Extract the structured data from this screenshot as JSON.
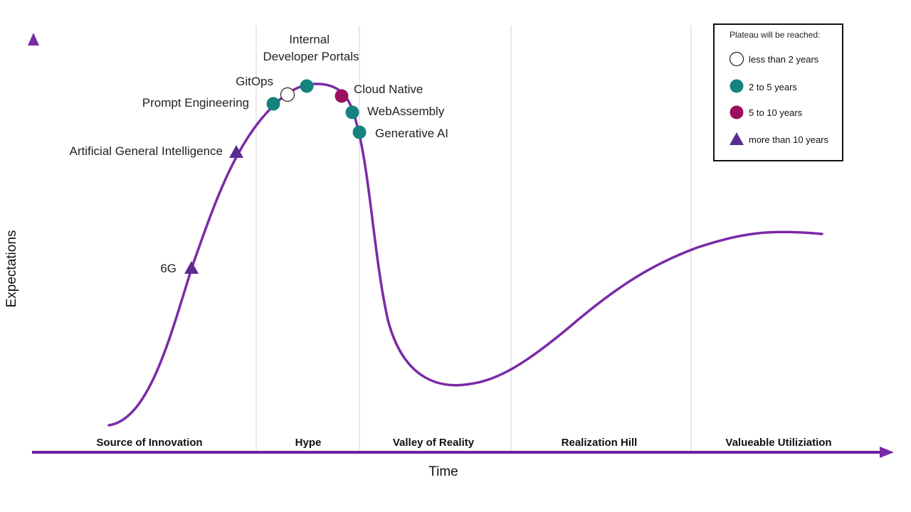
{
  "axes": {
    "x_label": "Time",
    "y_label": "Expectations"
  },
  "phases": [
    {
      "label": "Source of Innovation"
    },
    {
      "label": "Hype"
    },
    {
      "label": "Valley of Reality"
    },
    {
      "label": "Realization Hill"
    },
    {
      "label": "Valueable Utiliziation"
    }
  ],
  "technologies": [
    {
      "name": "6G",
      "category": "more than 10 years"
    },
    {
      "name": "Artificial General Intelligence",
      "category": "more than 10 years"
    },
    {
      "name": "Prompt Engineering",
      "category": "2 to 5 years"
    },
    {
      "name": "GitOps",
      "category": "less than 2 years"
    },
    {
      "name": "Internal Developer Portals",
      "category": "2 to 5 years"
    },
    {
      "name": "Cloud Native",
      "category": "5 to 10 years"
    },
    {
      "name": "WebAssembly",
      "category": "2 to 5 years"
    },
    {
      "name": "Generative AI",
      "category": "2 to 5 years"
    }
  ],
  "legend": {
    "title": "Plateau will be reached:",
    "items": [
      {
        "label": "less than 2 years",
        "marker": "circle-outline",
        "color": "#ffffff"
      },
      {
        "label": "2 to 5 years",
        "marker": "circle",
        "color": "#14837e"
      },
      {
        "label": "5 to 10 years",
        "marker": "circle",
        "color": "#9b0f5f"
      },
      {
        "label": "more than 10 years",
        "marker": "triangle",
        "color": "#5b2b91"
      }
    ]
  },
  "colors": {
    "curve": "#7a2aa6",
    "axis": "#6a1fa0",
    "divider": "#d8d8e0"
  }
}
